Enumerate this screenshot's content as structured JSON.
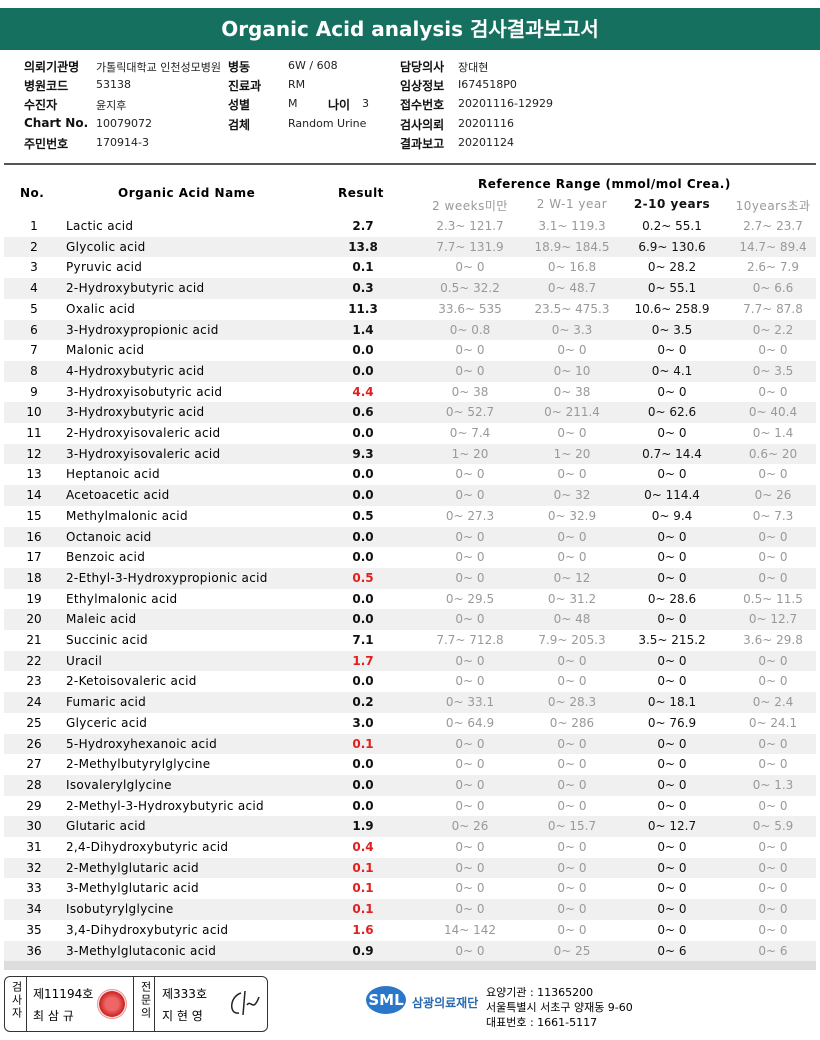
{
  "header": {
    "title": "Organic Acid analysis 검사결과보고서"
  },
  "info": [
    {
      "label": "의뢰기관명",
      "value": "가톨릭대학교 인천성모병원"
    },
    {
      "label": "병동",
      "value": "6W / 608"
    },
    {
      "label": "담당의사",
      "value": "장대현"
    },
    {
      "label": "병원코드",
      "value": "53138"
    },
    {
      "label": "진료과",
      "value": "RM"
    },
    {
      "label": "임상정보",
      "value": "I674518P0"
    },
    {
      "label": "수진자",
      "value": "윤지후"
    },
    {
      "label": "성별",
      "value": "M"
    },
    {
      "label": "나이",
      "value": "3"
    },
    {
      "label": "접수번호",
      "value": "20201116-12929"
    },
    {
      "label": "Chart No.",
      "value": "10079072"
    },
    {
      "label": "검체",
      "value": "Random Urine"
    },
    {
      "label": "검사의뢰",
      "value": "20201116"
    },
    {
      "label": "주민번호",
      "value": "170914-3"
    },
    {
      "label": "결과보고",
      "value": "20201124"
    }
  ],
  "table": {
    "headers": {
      "no": "No.",
      "name": "Organic Acid Name",
      "result": "Result",
      "range": "Reference Range (mmol/mol Crea.)",
      "ranges": [
        "2 weeks미만",
        "2 W-1 year",
        "2-10 years",
        "10years초과"
      ]
    },
    "rows": [
      {
        "no": "1",
        "name": "Lactic acid",
        "result": "2.7",
        "ranges": [
          "2.3~ 121.7",
          "3.1~ 119.3",
          "0.2~ 55.1",
          "2.7~ 23.7"
        ]
      },
      {
        "no": "2",
        "name": "Glycolic acid",
        "result": "13.8",
        "ranges": [
          "7.7~ 131.9",
          "18.9~ 184.5",
          "6.9~ 130.6",
          "14.7~ 89.4"
        ]
      },
      {
        "no": "3",
        "name": "Pyruvic acid",
        "result": "0.1",
        "ranges": [
          "0~ 0",
          "0~ 16.8",
          "0~ 28.2",
          "2.6~ 7.9"
        ]
      },
      {
        "no": "4",
        "name": "2-Hydroxybutyric acid",
        "result": "0.3",
        "ranges": [
          "0.5~ 32.2",
          "0~ 48.7",
          "0~ 55.1",
          "0~ 6.6"
        ]
      },
      {
        "no": "5",
        "name": "Oxalic acid",
        "result": "11.3",
        "ranges": [
          "33.6~ 535",
          "23.5~ 475.3",
          "10.6~ 258.9",
          "7.7~ 87.8"
        ]
      },
      {
        "no": "6",
        "name": "3-Hydroxypropionic acid",
        "result": "1.4",
        "ranges": [
          "0~ 0.8",
          "0~ 3.3",
          "0~ 3.5",
          "0~ 2.2"
        ]
      },
      {
        "no": "7",
        "name": "Malonic acid",
        "result": "0.0",
        "ranges": [
          "0~ 0",
          "0~ 0",
          "0~ 0",
          "0~ 0"
        ]
      },
      {
        "no": "8",
        "name": "4-Hydroxybutyric acid",
        "result": "0.0",
        "ranges": [
          "0~ 0",
          "0~ 10",
          "0~ 4.1",
          "0~ 3.5"
        ]
      },
      {
        "no": "9",
        "name": "3-Hydroxyisobutyric acid",
        "result": "4.4",
        "color": "#e02020",
        "ranges": [
          "0~ 38",
          "0~ 38",
          "0~ 0",
          "0~ 0"
        ]
      },
      {
        "no": "10",
        "name": "3-Hydroxybutyric acid",
        "result": "0.6",
        "ranges": [
          "0~ 52.7",
          "0~ 211.4",
          "0~ 62.6",
          "0~ 40.4"
        ]
      },
      {
        "no": "11",
        "name": "2-Hydroxyisovaleric acid",
        "result": "0.0",
        "ranges": [
          "0~ 7.4",
          "0~ 0",
          "0~ 0",
          "0~ 1.4"
        ]
      },
      {
        "no": "12",
        "name": "3-Hydroxyisovaleric acid",
        "result": "9.3",
        "ranges": [
          "1~ 20",
          "1~ 20",
          "0.7~ 14.4",
          "0.6~ 20"
        ]
      },
      {
        "no": "13",
        "name": "Heptanoic acid",
        "result": "0.0",
        "ranges": [
          "0~ 0",
          "0~ 0",
          "0~ 0",
          "0~ 0"
        ]
      },
      {
        "no": "14",
        "name": "Acetoacetic acid",
        "result": "0.0",
        "ranges": [
          "0~ 0",
          "0~ 32",
          "0~ 114.4",
          "0~ 26"
        ]
      },
      {
        "no": "15",
        "name": "Methylmalonic acid",
        "result": "0.5",
        "ranges": [
          "0~ 27.3",
          "0~ 32.9",
          "0~ 9.4",
          "0~ 7.3"
        ]
      },
      {
        "no": "16",
        "name": "Octanoic acid",
        "result": "0.0",
        "ranges": [
          "0~ 0",
          "0~ 0",
          "0~ 0",
          "0~ 0"
        ]
      },
      {
        "no": "17",
        "name": "Benzoic acid",
        "result": "0.0",
        "ranges": [
          "0~ 0",
          "0~ 0",
          "0~ 0",
          "0~ 0"
        ]
      },
      {
        "no": "18",
        "name": "2-Ethyl-3-Hydroxypropionic acid",
        "result": "0.5",
        "color": "#e02020",
        "ranges": [
          "0~ 0",
          "0~ 12",
          "0~ 0",
          "0~ 0"
        ]
      },
      {
        "no": "19",
        "name": "Ethylmalonic acid",
        "result": "0.0",
        "ranges": [
          "0~ 29.5",
          "0~ 31.2",
          "0~ 28.6",
          "0.5~ 11.5"
        ]
      },
      {
        "no": "20",
        "name": "Maleic acid",
        "result": "0.0",
        "ranges": [
          "0~ 0",
          "0~ 48",
          "0~ 0",
          "0~ 12.7"
        ]
      },
      {
        "no": "21",
        "name": "Succinic acid",
        "result": "7.1",
        "ranges": [
          "7.7~ 712.8",
          "7.9~ 205.3",
          "3.5~ 215.2",
          "3.6~ 29.8"
        ]
      },
      {
        "no": "22",
        "name": "Uracil",
        "result": "1.7",
        "color": "#e02020",
        "ranges": [
          "0~ 0",
          "0~ 0",
          "0~ 0",
          "0~ 0"
        ]
      },
      {
        "no": "23",
        "name": "2-Ketoisovaleric acid",
        "result": "0.0",
        "ranges": [
          "0~ 0",
          "0~ 0",
          "0~ 0",
          "0~ 0"
        ]
      },
      {
        "no": "24",
        "name": "Fumaric acid",
        "result": "0.2",
        "ranges": [
          "0~ 33.1",
          "0~ 28.3",
          "0~ 18.1",
          "0~ 2.4"
        ]
      },
      {
        "no": "25",
        "name": "Glyceric acid",
        "result": "3.0",
        "ranges": [
          "0~ 64.9",
          "0~ 286",
          "0~ 76.9",
          "0~ 24.1"
        ]
      },
      {
        "no": "26",
        "name": "5-Hydroxyhexanoic acid",
        "result": "0.1",
        "color": "#e02020",
        "ranges": [
          "0~ 0",
          "0~ 0",
          "0~ 0",
          "0~ 0"
        ]
      },
      {
        "no": "27",
        "name": "2-Methylbutyrylglycine",
        "result": "0.0",
        "ranges": [
          "0~ 0",
          "0~ 0",
          "0~ 0",
          "0~ 0"
        ]
      },
      {
        "no": "28",
        "name": "Isovalerylglycine",
        "result": "0.0",
        "ranges": [
          "0~ 0",
          "0~ 0",
          "0~ 0",
          "0~ 1.3"
        ]
      },
      {
        "no": "29",
        "name": "2-Methyl-3-Hydroxybutyric acid",
        "result": "0.0",
        "ranges": [
          "0~ 0",
          "0~ 0",
          "0~ 0",
          "0~ 0"
        ]
      },
      {
        "no": "30",
        "name": "Glutaric acid",
        "result": "1.9",
        "ranges": [
          "0~ 26",
          "0~ 15.7",
          "0~ 12.7",
          "0~ 5.9"
        ]
      },
      {
        "no": "31",
        "name": "2,4-Dihydroxybutyric acid",
        "result": "0.4",
        "color": "#e02020",
        "ranges": [
          "0~ 0",
          "0~ 0",
          "0~ 0",
          "0~ 0"
        ]
      },
      {
        "no": "32",
        "name": "2-Methylglutaric acid",
        "result": "0.1",
        "color": "#e02020",
        "ranges": [
          "0~ 0",
          "0~ 0",
          "0~ 0",
          "0~ 0"
        ]
      },
      {
        "no": "33",
        "name": "3-Methylglutaric acid",
        "result": "0.1",
        "color": "#e02020",
        "ranges": [
          "0~ 0",
          "0~ 0",
          "0~ 0",
          "0~ 0"
        ]
      },
      {
        "no": "34",
        "name": "Isobutyrylglycine",
        "result": "0.1",
        "color": "#e02020",
        "ranges": [
          "0~ 0",
          "0~ 0",
          "0~ 0",
          "0~ 0"
        ]
      },
      {
        "no": "35",
        "name": "3,4-Dihydroxybutyric acid",
        "result": "1.6",
        "color": "#e02020",
        "ranges": [
          "14~ 142",
          "0~ 0",
          "0~ 0",
          "0~ 0"
        ]
      },
      {
        "no": "36",
        "name": "3-Methylglutaconic acid",
        "result": "0.9",
        "ranges": [
          "0~ 0",
          "0~ 25",
          "0~ 6",
          "0~ 6"
        ]
      }
    ]
  },
  "footer": {
    "examiner": {
      "title": "검사자",
      "license": "제11194호",
      "name": "최 삼 규"
    },
    "specialist": {
      "title": "전문의",
      "license": "제333호",
      "name": "지 현 영"
    },
    "logo": "SML",
    "foundation": "삼광의료재단",
    "lines": [
      "요양기관 : 11365200",
      "서울특별시 서초구 양재동 9-60",
      "대표번호 : 1661-5117"
    ]
  }
}
